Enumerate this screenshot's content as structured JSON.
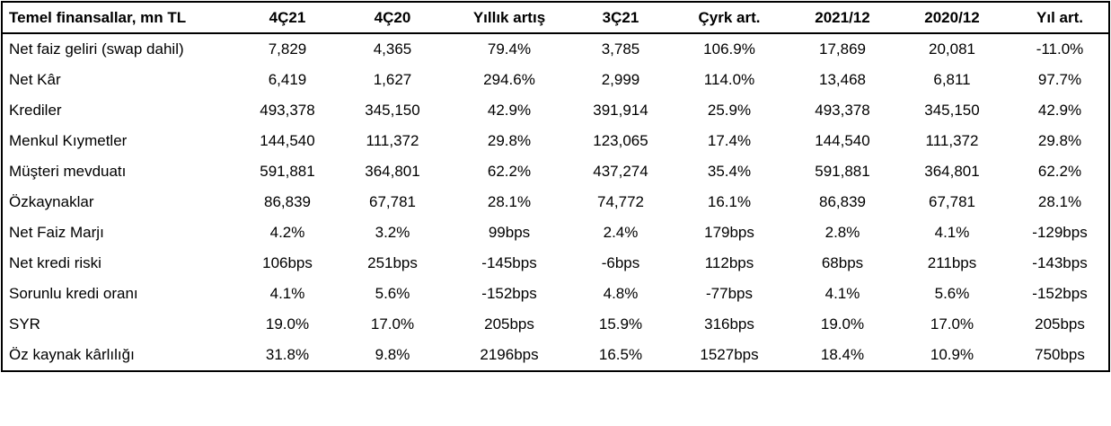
{
  "table": {
    "header": [
      "Temel finansallar, mn TL",
      "4Ç21",
      "4Ç20",
      "Yıllık artış",
      "3Ç21",
      "Çyrk art.",
      "2021/12",
      "2020/12",
      "Yıl art."
    ],
    "rows": [
      [
        "Net faiz geliri (swap dahil)",
        "7,829",
        "4,365",
        "79.4%",
        "3,785",
        "106.9%",
        "17,869",
        "20,081",
        "-11.0%"
      ],
      [
        "Net Kâr",
        "6,419",
        "1,627",
        "294.6%",
        "2,999",
        "114.0%",
        "13,468",
        "6,811",
        "97.7%"
      ],
      [
        "Krediler",
        "493,378",
        "345,150",
        "42.9%",
        "391,914",
        "25.9%",
        "493,378",
        "345,150",
        "42.9%"
      ],
      [
        "Menkul Kıymetler",
        "144,540",
        "111,372",
        "29.8%",
        "123,065",
        "17.4%",
        "144,540",
        "111,372",
        "29.8%"
      ],
      [
        "Müşteri mevduatı",
        "591,881",
        "364,801",
        "62.2%",
        "437,274",
        "35.4%",
        "591,881",
        "364,801",
        "62.2%"
      ],
      [
        "Özkaynaklar",
        "86,839",
        "67,781",
        "28.1%",
        "74,772",
        "16.1%",
        "86,839",
        "67,781",
        "28.1%"
      ],
      [
        "Net Faiz Marjı",
        "4.2%",
        "3.2%",
        "99bps",
        "2.4%",
        "179bps",
        "2.8%",
        "4.1%",
        "-129bps"
      ],
      [
        "Net kredi riski",
        "106bps",
        "251bps",
        "-145bps",
        "-6bps",
        "112bps",
        "68bps",
        "211bps",
        "-143bps"
      ],
      [
        "Sorunlu kredi oranı",
        "4.1%",
        "5.6%",
        "-152bps",
        "4.8%",
        "-77bps",
        "4.1%",
        "5.6%",
        "-152bps"
      ],
      [
        "SYR",
        "19.0%",
        "17.0%",
        "205bps",
        "15.9%",
        "316bps",
        "19.0%",
        "17.0%",
        "205bps"
      ],
      [
        "Öz kaynak kârlılığı",
        "31.8%",
        "9.8%",
        "2196bps",
        "16.5%",
        "1527bps",
        "18.4%",
        "10.9%",
        "750bps"
      ]
    ]
  }
}
